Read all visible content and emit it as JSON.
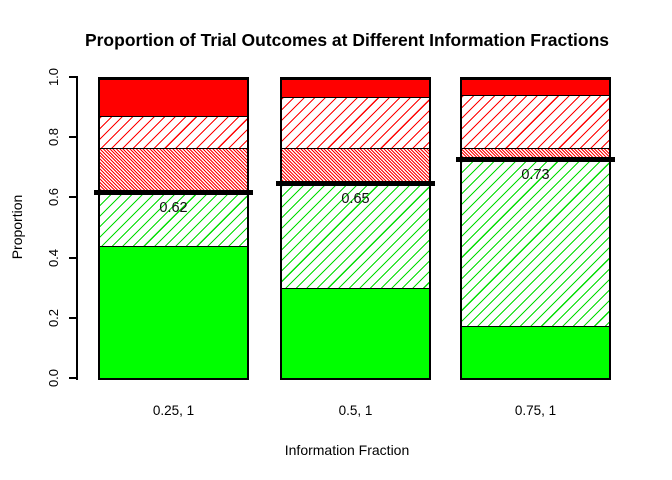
{
  "title": "Proportion of Trial Outcomes at Different Information Fractions",
  "axes": {
    "y_label": "Proportion",
    "x_label": "Information Fraction",
    "y_tick_labels": [
      "0.0",
      "0.2",
      "0.4",
      "0.6",
      "0.8",
      "1.0"
    ]
  },
  "chart_data": {
    "type": "bar",
    "stacked": true,
    "title": "Proportion of Trial Outcomes at Different Information Fractions",
    "xlabel": "Information Fraction",
    "ylabel": "Proportion",
    "ylim": [
      0,
      1
    ],
    "grid": false,
    "legend": "none",
    "categories": [
      "0.25, 1",
      "0.5, 1",
      "0.75, 1"
    ],
    "series": [
      {
        "name": "solid-green-bottom",
        "pattern": "solid",
        "color": "#00FF00",
        "values": [
          0.44,
          0.3,
          0.175
        ]
      },
      {
        "name": "green-hatch",
        "pattern": "hatch-ne",
        "color": "#00DC00",
        "values": [
          0.18,
          0.35,
          0.555
        ]
      },
      {
        "name": "red-dense-hatch",
        "pattern": "hatch-nw-dense",
        "color": "#FF0000",
        "values": [
          0.15,
          0.12,
          0.04
        ]
      },
      {
        "name": "red-sparse-hatch",
        "pattern": "hatch-ne",
        "color": "#FF0000",
        "values": [
          0.105,
          0.17,
          0.175
        ]
      },
      {
        "name": "solid-red-top",
        "pattern": "solid",
        "color": "#FF0000",
        "values": [
          0.125,
          0.06,
          0.055
        ]
      }
    ],
    "threshold_markers": {
      "values": [
        0.62,
        0.65,
        0.73
      ],
      "labels": [
        "0.62",
        "0.65",
        "0.73"
      ],
      "color": "#000000"
    }
  },
  "colors": {
    "background": "#FFFFFF",
    "axis": "#000000",
    "bar_outline": "#000000",
    "solid_green": "#00FF00",
    "solid_red": "#FF0000",
    "threshold": "#000000"
  }
}
